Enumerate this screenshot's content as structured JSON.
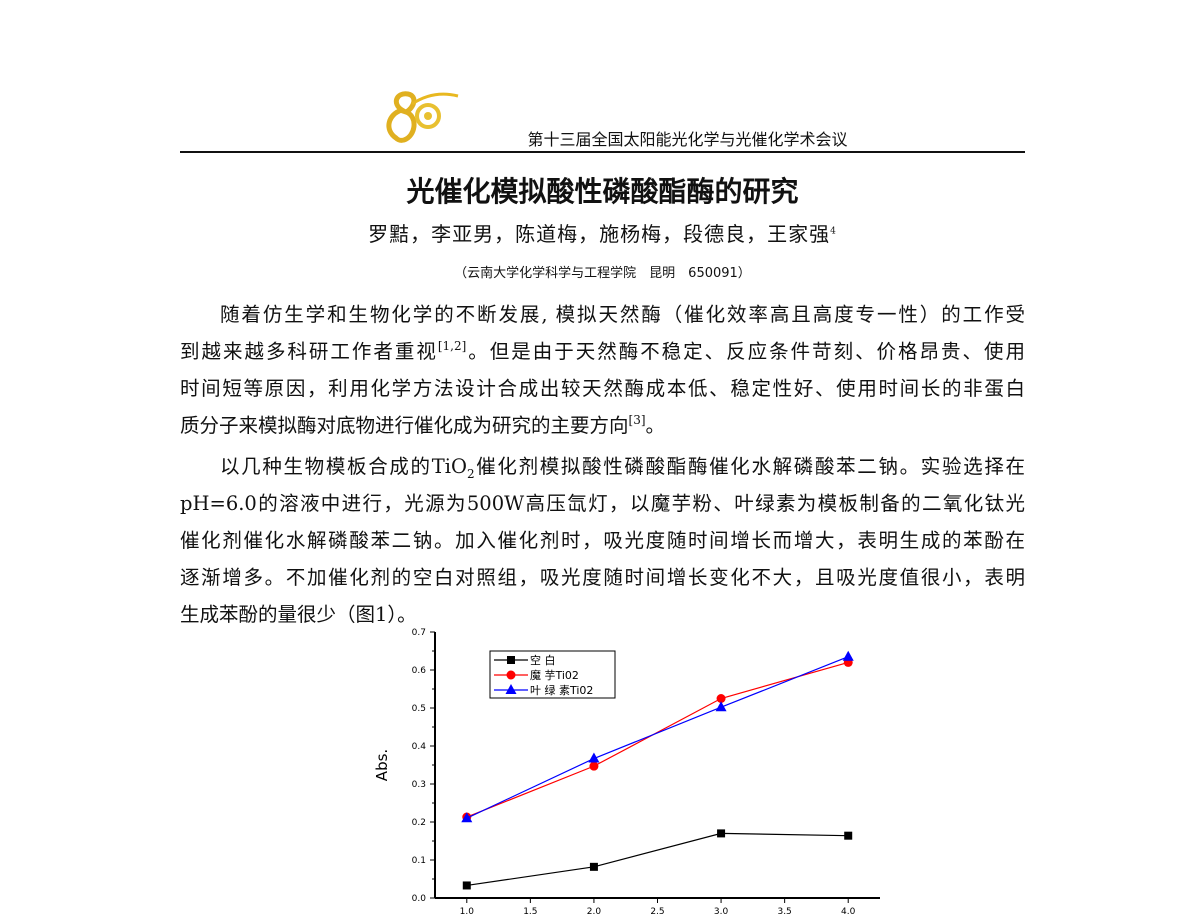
{
  "header": {
    "logo_text": "80",
    "conference": "第十三届全国太阳能光化学与光催化学术会议"
  },
  "paper": {
    "title": "光催化模拟酸性磷酸酯酶的研究",
    "authors": "罗黠，李亚男，陈道梅，施杨梅，段德良，王家强",
    "author_mark": "4",
    "affiliation": "（云南大学化学科学与工程学院　昆明　650091）"
  },
  "paragraph1": {
    "l1": "随着仿生学和生物化学的不断发展, 模拟天然酶（催化效率高且高度专一性）的工作受",
    "l2a": "到越来越多科研工作者重视",
    "l2sup": "[1,2]",
    "l2b": "。但是由于天然酶不稳定、反应条件苛刻、价格昂贵、使用",
    "l3": "时间短等原因，利用化学方法设计合成出较天然酶成本低、稳定性好、使用时间长的非蛋白",
    "l4a": "质分子来模拟酶对底物进行催化成为研究的主要方向",
    "l4sup": "[3]",
    "l4b": "。"
  },
  "paragraph2": {
    "l1a": "以几种生物模板合成的TiO",
    "l1sub": "2",
    "l1b": "催化剂模拟酸性磷酸酯酶催化水解磷酸苯二钠。实验选择在",
    "l2": "pH=6.0的溶液中进行，光源为500W高压氙灯，以魔芋粉、叶绿素为模板制备的二氧化钛光",
    "l3": "催化剂催化水解磷酸苯二钠。加入催化剂时，吸光度随时间增长而增大，表明生成的苯酚在",
    "l4": "逐渐增多。不加催化剂的空白对照组，吸光度随时间增长变化不大，且吸光度值很小，表明",
    "l5": "生成苯酚的量很少（图1）。"
  },
  "chart_data": {
    "type": "line",
    "title": "",
    "xlabel": "",
    "ylabel": "Abs.",
    "x": [
      1.0,
      2.0,
      3.0,
      4.0
    ],
    "xlim": [
      0.75,
      4.25
    ],
    "ylim": [
      0.0,
      0.7
    ],
    "xticks": [
      "1.0",
      "1.5",
      "2.0",
      "2.5",
      "3.0",
      "3.5",
      "4.0"
    ],
    "yticks": [
      "0.0",
      "0.1",
      "0.2",
      "0.3",
      "0.4",
      "0.5",
      "0.6",
      "0.7"
    ],
    "grid": false,
    "legend_position": "top-left",
    "series": [
      {
        "name": "空 白",
        "values": [
          0.033,
          0.082,
          0.17,
          0.164
        ],
        "color": "#000000",
        "marker": "square"
      },
      {
        "name": "魔 芋Ti02",
        "values": [
          0.213,
          0.347,
          0.525,
          0.62
        ],
        "color": "#ff0000",
        "marker": "circle"
      },
      {
        "name": "叶 绿 素Ti02",
        "values": [
          0.21,
          0.367,
          0.502,
          0.635
        ],
        "color": "#0000ff",
        "marker": "triangle"
      }
    ]
  }
}
